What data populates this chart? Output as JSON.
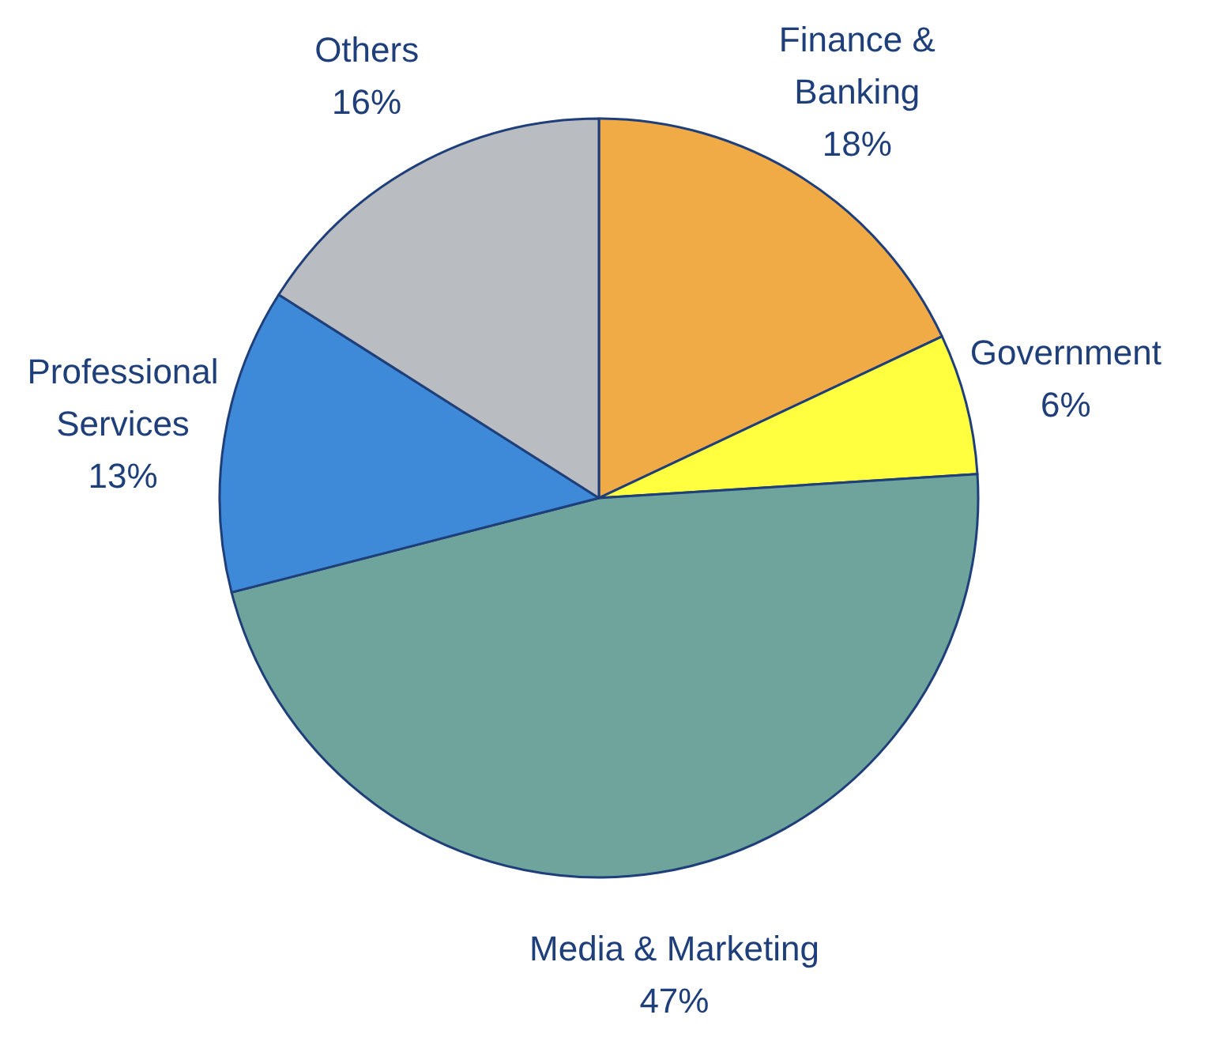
{
  "chart_data": {
    "type": "pie",
    "categories": [
      "Finance & Banking",
      "Government",
      "Media & Marketing",
      "Professional Services",
      "Others"
    ],
    "values": [
      18,
      6,
      47,
      13,
      16
    ],
    "colors": [
      "#f0aa46",
      "#ffff40",
      "#6ea49b",
      "#3f8ad8",
      "#b9bdc1"
    ],
    "value_labels": [
      "18%",
      "6%",
      "47%",
      "13%",
      "16%"
    ]
  }
}
